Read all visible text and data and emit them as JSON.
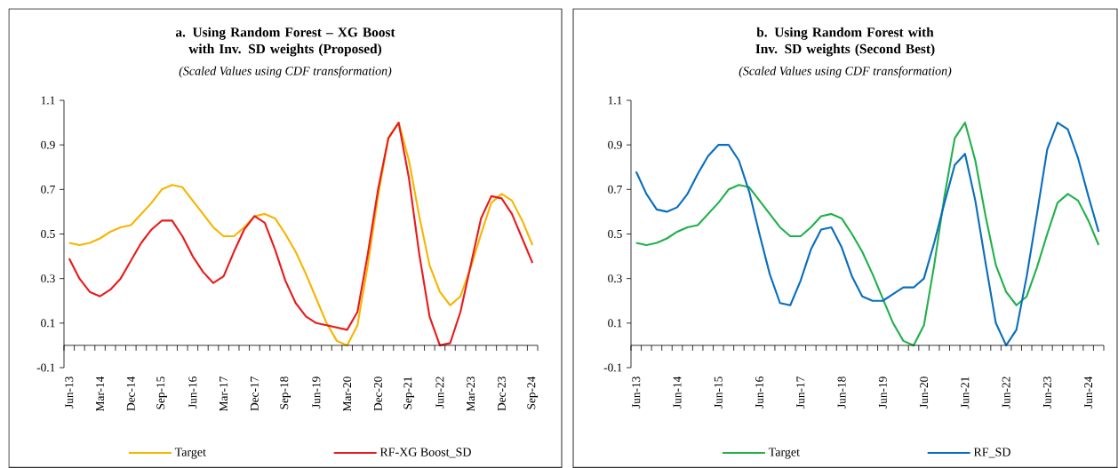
{
  "chart_data": [
    {
      "type": "line",
      "title": "a. Using Random Forest – XG Boost with Inv. SD weights (Proposed)",
      "subtitle": "(Scaled Values using CDF transformation)",
      "categories": [
        "Jun-13",
        null,
        null,
        "Mar-14",
        null,
        null,
        "Dec-14",
        null,
        null,
        "Sep-15",
        null,
        null,
        "Jun-16",
        null,
        null,
        "Mar-17",
        null,
        null,
        "Dec-17",
        null,
        null,
        "Sep-18",
        null,
        null,
        "Jun-19",
        null,
        null,
        "Mar-20",
        null,
        null,
        "Dec-20",
        null,
        null,
        "Sep-21",
        null,
        null,
        "Jun-22",
        null,
        null,
        "Mar-23",
        null,
        null,
        "Dec-23",
        null,
        null,
        "Sep-24"
      ],
      "series": [
        {
          "name": "Target",
          "color": "#f7b500",
          "values": [
            0.46,
            0.45,
            0.46,
            0.48,
            0.51,
            0.53,
            0.54,
            0.59,
            0.64,
            0.7,
            0.72,
            0.71,
            0.65,
            0.59,
            0.53,
            0.49,
            0.49,
            0.53,
            0.58,
            0.59,
            0.57,
            0.5,
            0.42,
            0.32,
            0.21,
            0.1,
            0.02,
            0,
            0.09,
            0.36,
            0.67,
            0.93,
            1.0,
            0.83,
            0.58,
            0.36,
            0.24,
            0.18,
            0.22,
            0.35,
            0.5,
            0.64,
            0.68,
            0.65,
            0.56,
            0.45
          ]
        },
        {
          "name": "RF-XG Boost_SD",
          "color": "#e81c1c",
          "values": [
            0.39,
            0.3,
            0.24,
            0.22,
            0.25,
            0.3,
            0.38,
            0.46,
            0.52,
            0.56,
            0.56,
            0.49,
            0.4,
            0.33,
            0.28,
            0.31,
            0.42,
            0.52,
            0.58,
            0.55,
            0.43,
            0.29,
            0.19,
            0.13,
            0.1,
            0.09,
            0.08,
            0.07,
            0.15,
            0.41,
            0.7,
            0.93,
            1.0,
            0.75,
            0.41,
            0.13,
            0,
            0.01,
            0.15,
            0.36,
            0.57,
            0.67,
            0.66,
            0.59,
            0.48,
            0.37
          ]
        }
      ],
      "ylim": [
        -0.1,
        1.1
      ],
      "yticks": [
        -0.1,
        0.1,
        0.3,
        0.5,
        0.7,
        0.9,
        1.1
      ],
      "legend": "bottom"
    },
    {
      "type": "line",
      "title": "b. Using Random Forest with Inv. SD weights (Second Best)",
      "subtitle": "(Scaled Values using CDF transformation)",
      "categories": [
        "Jun-13",
        null,
        null,
        null,
        "Jun-14",
        null,
        null,
        null,
        "Jun-15",
        null,
        null,
        null,
        "Jun-16",
        null,
        null,
        null,
        "Jun-17",
        null,
        null,
        null,
        "Jun-18",
        null,
        null,
        null,
        "Jun-19",
        null,
        null,
        null,
        "Jun-20",
        null,
        null,
        null,
        "Jun-21",
        null,
        null,
        null,
        "Jun-22",
        null,
        null,
        null,
        "Jun-23",
        null,
        null,
        null,
        "Jun-24",
        null
      ],
      "series": [
        {
          "name": "Target",
          "color": "#22b14c",
          "values": [
            0.46,
            0.45,
            0.46,
            0.48,
            0.51,
            0.53,
            0.54,
            0.59,
            0.64,
            0.7,
            0.72,
            0.71,
            0.65,
            0.59,
            0.53,
            0.49,
            0.49,
            0.53,
            0.58,
            0.59,
            0.57,
            0.5,
            0.42,
            0.32,
            0.21,
            0.1,
            0.02,
            0,
            0.09,
            0.36,
            0.67,
            0.93,
            1.0,
            0.83,
            0.58,
            0.36,
            0.24,
            0.18,
            0.22,
            0.35,
            0.5,
            0.64,
            0.68,
            0.65,
            0.56,
            0.45
          ]
        },
        {
          "name": "RF_SD",
          "color": "#0a6ebd",
          "values": [
            0.78,
            0.68,
            0.61,
            0.6,
            0.62,
            0.68,
            0.77,
            0.85,
            0.9,
            0.9,
            0.83,
            0.69,
            0.5,
            0.32,
            0.19,
            0.18,
            0.29,
            0.43,
            0.52,
            0.53,
            0.44,
            0.31,
            0.22,
            0.2,
            0.2,
            0.23,
            0.26,
            0.26,
            0.3,
            0.46,
            0.64,
            0.81,
            0.86,
            0.65,
            0.37,
            0.1,
            0,
            0.07,
            0.31,
            0.59,
            0.88,
            1.0,
            0.97,
            0.84,
            0.67,
            0.51
          ]
        }
      ],
      "ylim": [
        -0.1,
        1.1
      ],
      "yticks": [
        -0.1,
        0.1,
        0.3,
        0.5,
        0.7,
        0.9,
        1.1
      ],
      "legend": "bottom"
    }
  ]
}
